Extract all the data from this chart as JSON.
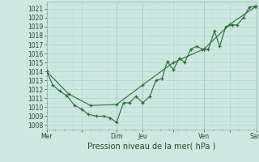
{
  "background_color": "#cce8e0",
  "grid_color_major": "#b0d4cc",
  "grid_color_minor": "#c4ddd8",
  "line_color": "#2d6b3a",
  "ylabel": "Pression niveau de la mer( hPa )",
  "ylim": [
    1007.5,
    1021.8
  ],
  "yticks": [
    1008,
    1009,
    1010,
    1011,
    1012,
    1013,
    1014,
    1015,
    1016,
    1017,
    1018,
    1019,
    1020,
    1021
  ],
  "xtick_labels": [
    "Mer",
    "",
    "Dim",
    "Jeu",
    "",
    "Ven",
    "",
    "Sam"
  ],
  "xtick_positions": [
    0,
    4,
    8,
    11,
    14.5,
    18,
    21,
    24
  ],
  "vlines": [
    0,
    8,
    11,
    18,
    24
  ],
  "line1_x": [
    0,
    0.7,
    1.5,
    2.3,
    3.2,
    4.0,
    4.8,
    5.7,
    6.5,
    7.3,
    8.0,
    8.8,
    9.5,
    10.2,
    11.0,
    11.8,
    12.5,
    13.2,
    13.8,
    14.5,
    15.2,
    15.8,
    16.5,
    17.2,
    17.8,
    18.5,
    19.2,
    19.8,
    20.5,
    21.2,
    21.8,
    22.5,
    23.2,
    23.8,
    24.0
  ],
  "line1_y": [
    1014.0,
    1012.5,
    1011.8,
    1011.3,
    1010.2,
    1009.8,
    1009.2,
    1009.0,
    1009.0,
    1008.8,
    1008.3,
    1010.5,
    1010.5,
    1011.2,
    1010.5,
    1011.2,
    1013.0,
    1013.2,
    1015.1,
    1014.2,
    1015.5,
    1015.0,
    1016.5,
    1016.8,
    1016.5,
    1016.5,
    1018.5,
    1016.8,
    1019.0,
    1019.2,
    1019.2,
    1020.0,
    1021.2,
    1021.3,
    1021.3
  ],
  "line2_x": [
    0,
    2.5,
    5.0,
    8.0,
    11.0,
    14.5,
    18.0,
    21.0,
    24.0
  ],
  "line2_y": [
    1014.0,
    1011.5,
    1010.2,
    1010.3,
    1012.5,
    1015.0,
    1016.5,
    1019.3,
    1021.3
  ],
  "tick_fontsize": 5.5,
  "xlabel_fontsize": 7.0,
  "figsize": [
    3.2,
    2.0
  ],
  "dpi": 100
}
